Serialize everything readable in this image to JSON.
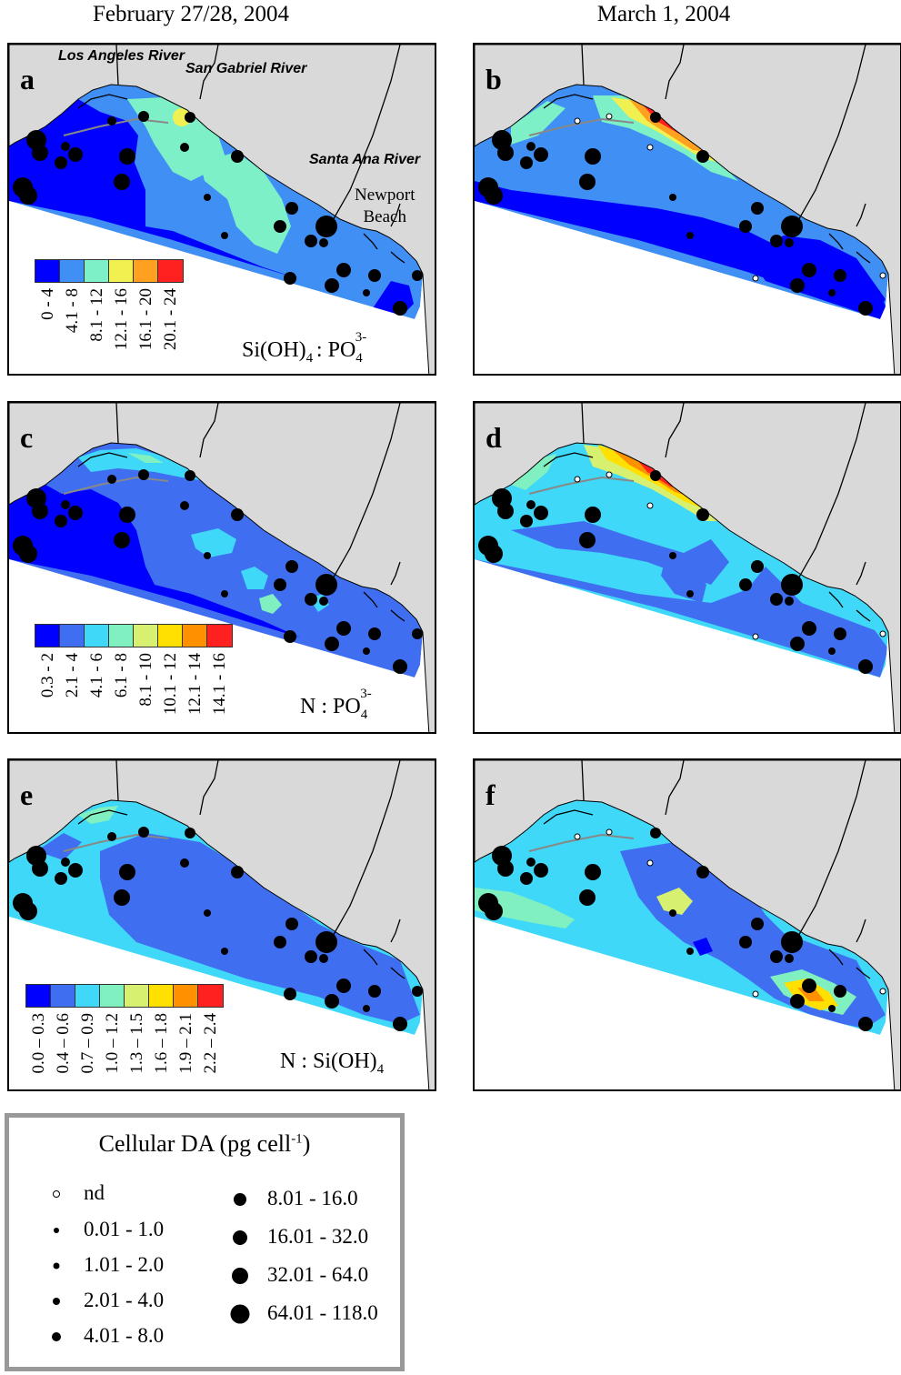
{
  "headers": {
    "left": "February 27/28, 2004",
    "right": "March 1, 2004"
  },
  "rivers": {
    "la": "Los Angeles River",
    "sg": "San Gabriel River",
    "sa": "Santa Ana River",
    "newport": "Newport Beach"
  },
  "panels": [
    {
      "letter": "a",
      "ratio": "Si(OH)4 : PO43-",
      "scale": [
        "0 - 4",
        "4.1 - 8",
        "8.1 - 12",
        "12.1 - 16",
        "16.1 - 20",
        "20.1 - 24"
      ]
    },
    {
      "letter": "b"
    },
    {
      "letter": "c",
      "ratio": "N : PO43-",
      "scale": [
        "0.3 - 2",
        "2.1 - 4",
        "4.1 - 6",
        "6.1 - 8",
        "8.1 - 10",
        "10.1 - 12",
        "12.1 - 14",
        "14.1 - 16"
      ]
    },
    {
      "letter": "d"
    },
    {
      "letter": "e",
      "ratio": "N : Si(OH)4",
      "scale": [
        "0.0 – 0.3",
        "0.4 – 0.6",
        "0.7 – 0.9",
        "1.0 – 1.2",
        "1.3 – 1.5",
        "1.6 – 1.8",
        "1.9 – 2.1",
        "2.2 – 2.4"
      ]
    },
    {
      "letter": "f"
    }
  ],
  "legend": {
    "title": "Cellular DA (pg cell-1)",
    "classes": [
      "nd",
      "0.01 - 1.0",
      "1.01 - 2.0",
      "2.01 - 4.0",
      "4.01 - 8.0",
      "8.01 - 16.0",
      "16.01 - 32.0",
      "32.01 - 64.0",
      "64.01 - 118.0"
    ]
  },
  "colors": {
    "land": "#d9d9d9",
    "scale6": [
      "#0000ff",
      "#3f8ff5",
      "#7ef0c8",
      "#f0f050",
      "#ffa020",
      "#ff2020"
    ],
    "scale8": [
      "#0000ff",
      "#3f6ff0",
      "#40d8f8",
      "#80f0c0",
      "#d8f070",
      "#ffe000",
      "#ff9000",
      "#ff2020"
    ]
  }
}
